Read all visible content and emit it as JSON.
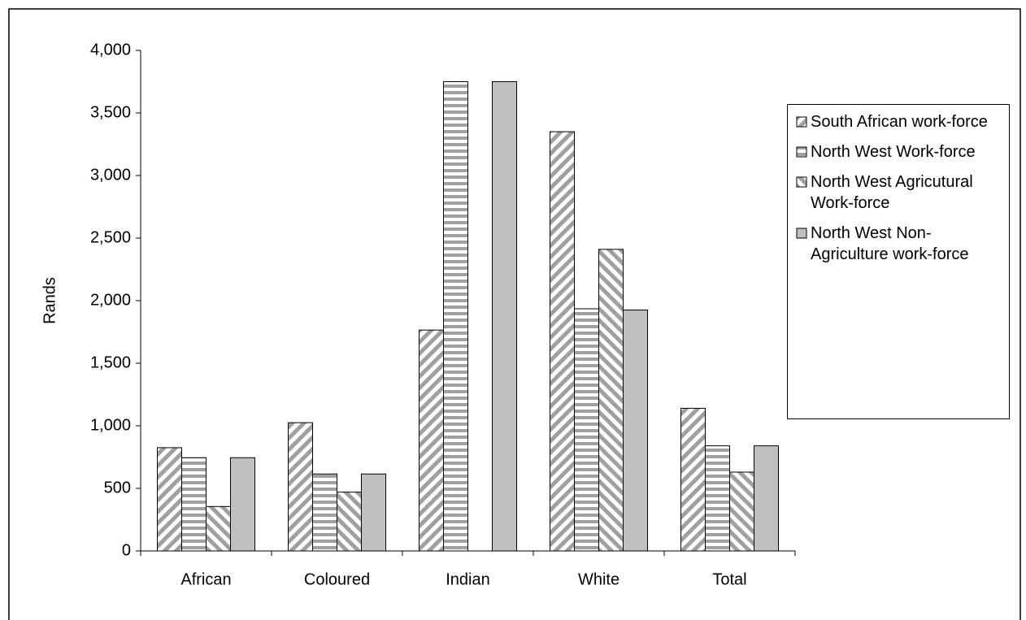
{
  "chart_data": {
    "type": "bar",
    "y_label": "Rands",
    "categories": [
      "African",
      "Coloured",
      "Indian",
      "White",
      "Total"
    ],
    "series": [
      {
        "name": "South African  work-force",
        "color": "#a0a0a0",
        "pattern": "diagonal",
        "values": [
          825,
          1025,
          1765,
          3350,
          1140
        ]
      },
      {
        "name": "North West Work-force",
        "color": "#a0a0a0",
        "pattern": "horizontal",
        "values": [
          745,
          615,
          3750,
          1935,
          840
        ]
      },
      {
        "name": "North West Agricutural Work-force",
        "color": "#a0a0a0",
        "pattern": "backdiagonal",
        "values": [
          355,
          470,
          null,
          2410,
          630
        ]
      },
      {
        "name": "North West Non-Agriculture work-force",
        "color": "#c0c0c0",
        "pattern": "solid",
        "values": [
          745,
          615,
          3750,
          1925,
          840
        ]
      }
    ],
    "ylim": [
      0,
      4000
    ],
    "yticks": [
      0,
      500,
      {
        "value": 1000,
        "label": "1,000"
      },
      {
        "value": 1500,
        "label": "1,500"
      },
      {
        "value": 2000,
        "label": "2,000"
      },
      {
        "value": 2500,
        "label": "2,500"
      },
      {
        "value": 3000,
        "label": "3,000"
      },
      {
        "value": 3500,
        "label": "3,500"
      },
      {
        "value": 4000,
        "label": "4,000"
      }
    ],
    "legend": "right"
  }
}
